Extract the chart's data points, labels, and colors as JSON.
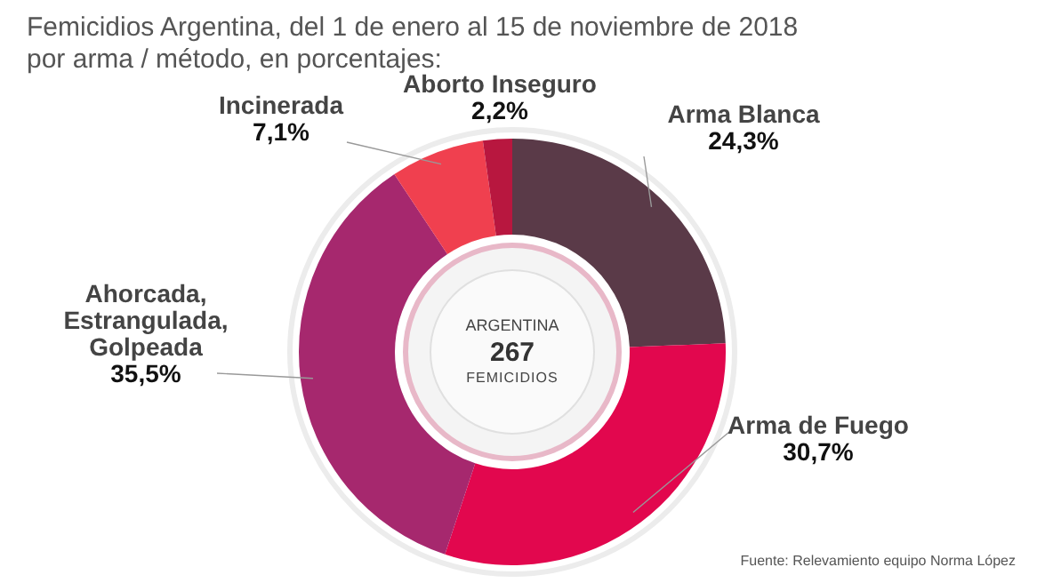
{
  "chart_data": {
    "type": "donut",
    "title": "Femicidios Argentina, del 1 de enero al 15 de noviembre de 2018\npor arma / método, en porcentajes:",
    "categories": [
      "Arma Blanca",
      "Arma de Fuego",
      "Ahorcada, Estrangulada, Golpeada",
      "Incinerada",
      "Aborto Inseguro"
    ],
    "values": [
      24.3,
      30.7,
      35.5,
      7.1,
      2.2
    ],
    "colors": [
      "#5a3a48",
      "#e2074e",
      "#a6286e",
      "#f0404f",
      "#b8173f"
    ],
    "value_labels": [
      "24,3%",
      "30,7%",
      "35,5%",
      "7,1%",
      "2,2%"
    ],
    "annotations": [
      "ARGENTINA",
      "267",
      "FEMICIDIOS",
      "Fuente: Relevamiento equipo Norma López"
    ],
    "legend": false
  }
}
